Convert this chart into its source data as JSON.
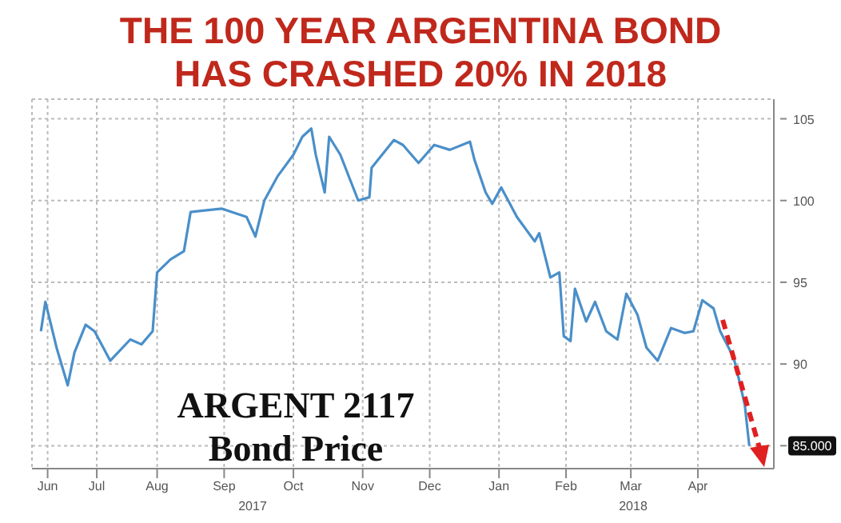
{
  "chart_data": {
    "type": "line",
    "title": "THE 100 YEAR ARGENTINA BOND\nHAS CRASHED 20% IN 2018",
    "x": [
      "2017-06-24",
      "2017-06-26",
      "2017-07-01",
      "2017-07-06",
      "2017-07-09",
      "2017-07-14",
      "2017-07-18",
      "2017-07-25",
      "2017-08-03",
      "2017-08-08",
      "2017-08-13",
      "2017-08-15",
      "2017-08-21",
      "2017-08-27",
      "2017-08-30",
      "2017-09-13",
      "2017-09-24",
      "2017-09-28",
      "2017-10-02",
      "2017-10-08",
      "2017-10-15",
      "2017-10-19",
      "2017-10-23",
      "2017-10-25",
      "2017-10-29",
      "2017-10-31",
      "2017-11-05",
      "2017-11-13",
      "2017-11-18",
      "2017-11-19",
      "2017-11-29",
      "2017-12-03",
      "2017-12-10",
      "2017-12-17",
      "2017-12-24",
      "2018-01-02",
      "2018-01-04",
      "2018-01-09",
      "2018-01-12",
      "2018-01-16",
      "2018-01-23",
      "2018-01-31",
      "2018-02-02",
      "2018-02-07",
      "2018-02-11",
      "2018-02-13",
      "2018-02-16",
      "2018-02-18",
      "2018-02-23",
      "2018-02-27",
      "2018-03-04",
      "2018-03-09",
      "2018-03-13",
      "2018-03-18",
      "2018-03-22",
      "2018-03-27",
      "2018-04-02",
      "2018-04-08",
      "2018-04-12",
      "2018-04-16",
      "2018-04-21",
      "2018-04-24",
      "2018-04-30",
      "2018-05-03",
      "2018-05-05",
      "2018-05-07"
    ],
    "series": [
      {
        "color": "#4a8fc9",
        "values": [
          92.0,
          93.8,
          91.0,
          88.7,
          90.7,
          92.4,
          92.0,
          90.2,
          91.5,
          91.2,
          92.0,
          95.6,
          96.4,
          96.9,
          99.3,
          99.5,
          99.0,
          97.8,
          100.0,
          101.5,
          102.8,
          103.9,
          104.4,
          102.8,
          100.5,
          103.9,
          102.8,
          100.0,
          100.2,
          102.0,
          103.7,
          103.4,
          102.3,
          103.4,
          103.1,
          103.6,
          102.5,
          100.5,
          99.8,
          100.8,
          99.0,
          97.5,
          98.0,
          95.3,
          95.6,
          91.7,
          91.4,
          94.6,
          92.6,
          93.8,
          92.0,
          91.5,
          94.3,
          93.0,
          91.0,
          90.2,
          92.2,
          91.9,
          92.0,
          93.9,
          93.4,
          92.0,
          90.4,
          88.7,
          87.5,
          85.0
        ]
      }
    ],
    "xlim": [
      "2017-06-20",
      "2018-05-18"
    ],
    "xticks": [
      {
        "value": "2017-06-27",
        "label": "Jun"
      },
      {
        "value": "2017-07-19",
        "label": "Jul"
      },
      {
        "value": "2017-08-15",
        "label": "Aug"
      },
      {
        "value": "2017-09-14",
        "label": "Sep"
      },
      {
        "value": "2017-10-15",
        "label": "Oct"
      },
      {
        "value": "2017-11-15",
        "label": "Nov"
      },
      {
        "value": "2017-12-15",
        "label": "Dec"
      },
      {
        "value": "2018-01-15",
        "label": "Jan"
      },
      {
        "value": "2018-02-14",
        "label": "Feb"
      },
      {
        "value": "2018-03-15",
        "label": "Mar"
      },
      {
        "value": "2018-04-14",
        "label": "Apr"
      }
    ],
    "ylim": [
      83.6,
      106.2
    ],
    "yticks": [
      {
        "value": 85,
        "label": "85.000"
      },
      90,
      95,
      100,
      105
    ],
    "grid": true,
    "marker": "none",
    "line_style": "solid",
    "annotations": [
      "ARGENT 2117",
      "Bond Price",
      "2017",
      "2018"
    ]
  }
}
